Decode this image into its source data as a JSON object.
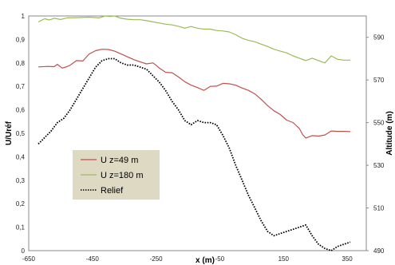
{
  "chart_data": {
    "type": "line",
    "xlabel": "x (m)",
    "ylabel": "U/Uréf",
    "y2label": "Altitude (m)",
    "xlim": [
      -650,
      410
    ],
    "ylim": [
      0,
      1
    ],
    "y2lim": [
      490,
      600
    ],
    "xticks": [
      -650,
      -450,
      -250,
      -50,
      150,
      350
    ],
    "xtick_labels": [
      "-650",
      "-450",
      "-250",
      "-50",
      "150",
      "350"
    ],
    "yticks": [
      0,
      0.1,
      0.2,
      0.3,
      0.4,
      0.5,
      0.6,
      0.7,
      0.8,
      0.9,
      1
    ],
    "ytick_labels": [
      "0",
      "0,1",
      "0,2",
      "0,3",
      "0,4",
      "0,5",
      "0,6",
      "0,7",
      "0,8",
      "0,9",
      "1"
    ],
    "y2ticks": [
      490,
      510,
      530,
      550,
      570,
      590
    ],
    "y2tick_labels": [
      "490",
      "510",
      "530",
      "550",
      "570",
      "590"
    ],
    "grid": false,
    "legend_position": "bottom-left",
    "series": [
      {
        "name": "U z=49 m",
        "color": "#c0504d",
        "axis": "left",
        "style": "solid",
        "x": [
          -620,
          -590,
          -570,
          -560,
          -545,
          -530,
          -520,
          -500,
          -480,
          -460,
          -440,
          -420,
          -400,
          -380,
          -360,
          -340,
          -320,
          -300,
          -280,
          -260,
          -250,
          -240,
          -220,
          -200,
          -180,
          -160,
          -140,
          -120,
          -100,
          -80,
          -60,
          -40,
          -20,
          0,
          20,
          40,
          60,
          80,
          100,
          120,
          140,
          160,
          180,
          200,
          210,
          220,
          240,
          260,
          280,
          300,
          320,
          340,
          360
        ],
        "y": [
          0.783,
          0.785,
          0.784,
          0.794,
          0.778,
          0.784,
          0.79,
          0.81,
          0.808,
          0.838,
          0.852,
          0.858,
          0.857,
          0.85,
          0.838,
          0.826,
          0.814,
          0.804,
          0.796,
          0.8,
          0.79,
          0.778,
          0.76,
          0.758,
          0.74,
          0.72,
          0.705,
          0.695,
          0.683,
          0.7,
          0.701,
          0.713,
          0.711,
          0.705,
          0.693,
          0.683,
          0.668,
          0.645,
          0.618,
          0.596,
          0.58,
          0.556,
          0.546,
          0.52,
          0.495,
          0.48,
          0.49,
          0.488,
          0.493,
          0.51,
          0.508,
          0.508,
          0.507
        ]
      },
      {
        "name": "U z=180 m",
        "color": "#9bbb59",
        "axis": "left",
        "style": "solid",
        "x": [
          -620,
          -600,
          -585,
          -570,
          -550,
          -530,
          -500,
          -460,
          -430,
          -410,
          -395,
          -380,
          -360,
          -340,
          -320,
          -300,
          -280,
          -260,
          -240,
          -220,
          -200,
          -180,
          -160,
          -140,
          -120,
          -100,
          -80,
          -60,
          -40,
          -20,
          0,
          20,
          40,
          60,
          80,
          100,
          120,
          140,
          160,
          180,
          200,
          220,
          240,
          260,
          280,
          300,
          320,
          340,
          360
        ],
        "y": [
          0.975,
          0.988,
          0.983,
          0.99,
          0.985,
          0.992,
          0.993,
          0.995,
          0.992,
          1.0,
          0.998,
          1.0,
          0.99,
          0.986,
          0.984,
          0.984,
          0.98,
          0.975,
          0.97,
          0.965,
          0.962,
          0.956,
          0.948,
          0.955,
          0.948,
          0.944,
          0.944,
          0.938,
          0.936,
          0.932,
          0.92,
          0.905,
          0.896,
          0.89,
          0.88,
          0.87,
          0.858,
          0.85,
          0.843,
          0.83,
          0.82,
          0.81,
          0.82,
          0.81,
          0.8,
          0.83,
          0.815,
          0.812,
          0.812
        ]
      },
      {
        "name": "Relief",
        "color": "#000000",
        "axis": "right",
        "style": "dotted",
        "x": [
          -620,
          -600,
          -580,
          -560,
          -540,
          -520,
          -500,
          -480,
          -460,
          -440,
          -420,
          -400,
          -380,
          -360,
          -340,
          -320,
          -300,
          -280,
          -260,
          -240,
          -220,
          -200,
          -180,
          -160,
          -140,
          -120,
          -100,
          -80,
          -60,
          -40,
          -20,
          0,
          20,
          40,
          60,
          80,
          100,
          120,
          140,
          160,
          180,
          200,
          220,
          240,
          260,
          280,
          300,
          320,
          340,
          360
        ],
        "y": [
          540,
          543,
          546,
          550,
          552,
          556,
          561,
          566,
          571,
          576,
          579,
          580,
          580,
          578,
          577,
          577,
          576,
          575,
          572,
          569,
          565,
          560,
          556,
          551,
          549,
          551,
          550,
          550,
          549,
          544,
          538,
          530,
          523,
          516,
          510,
          504,
          499,
          497,
          498,
          499,
          500,
          501,
          502,
          497,
          493,
          491,
          490,
          492,
          493,
          494
        ]
      }
    ]
  }
}
